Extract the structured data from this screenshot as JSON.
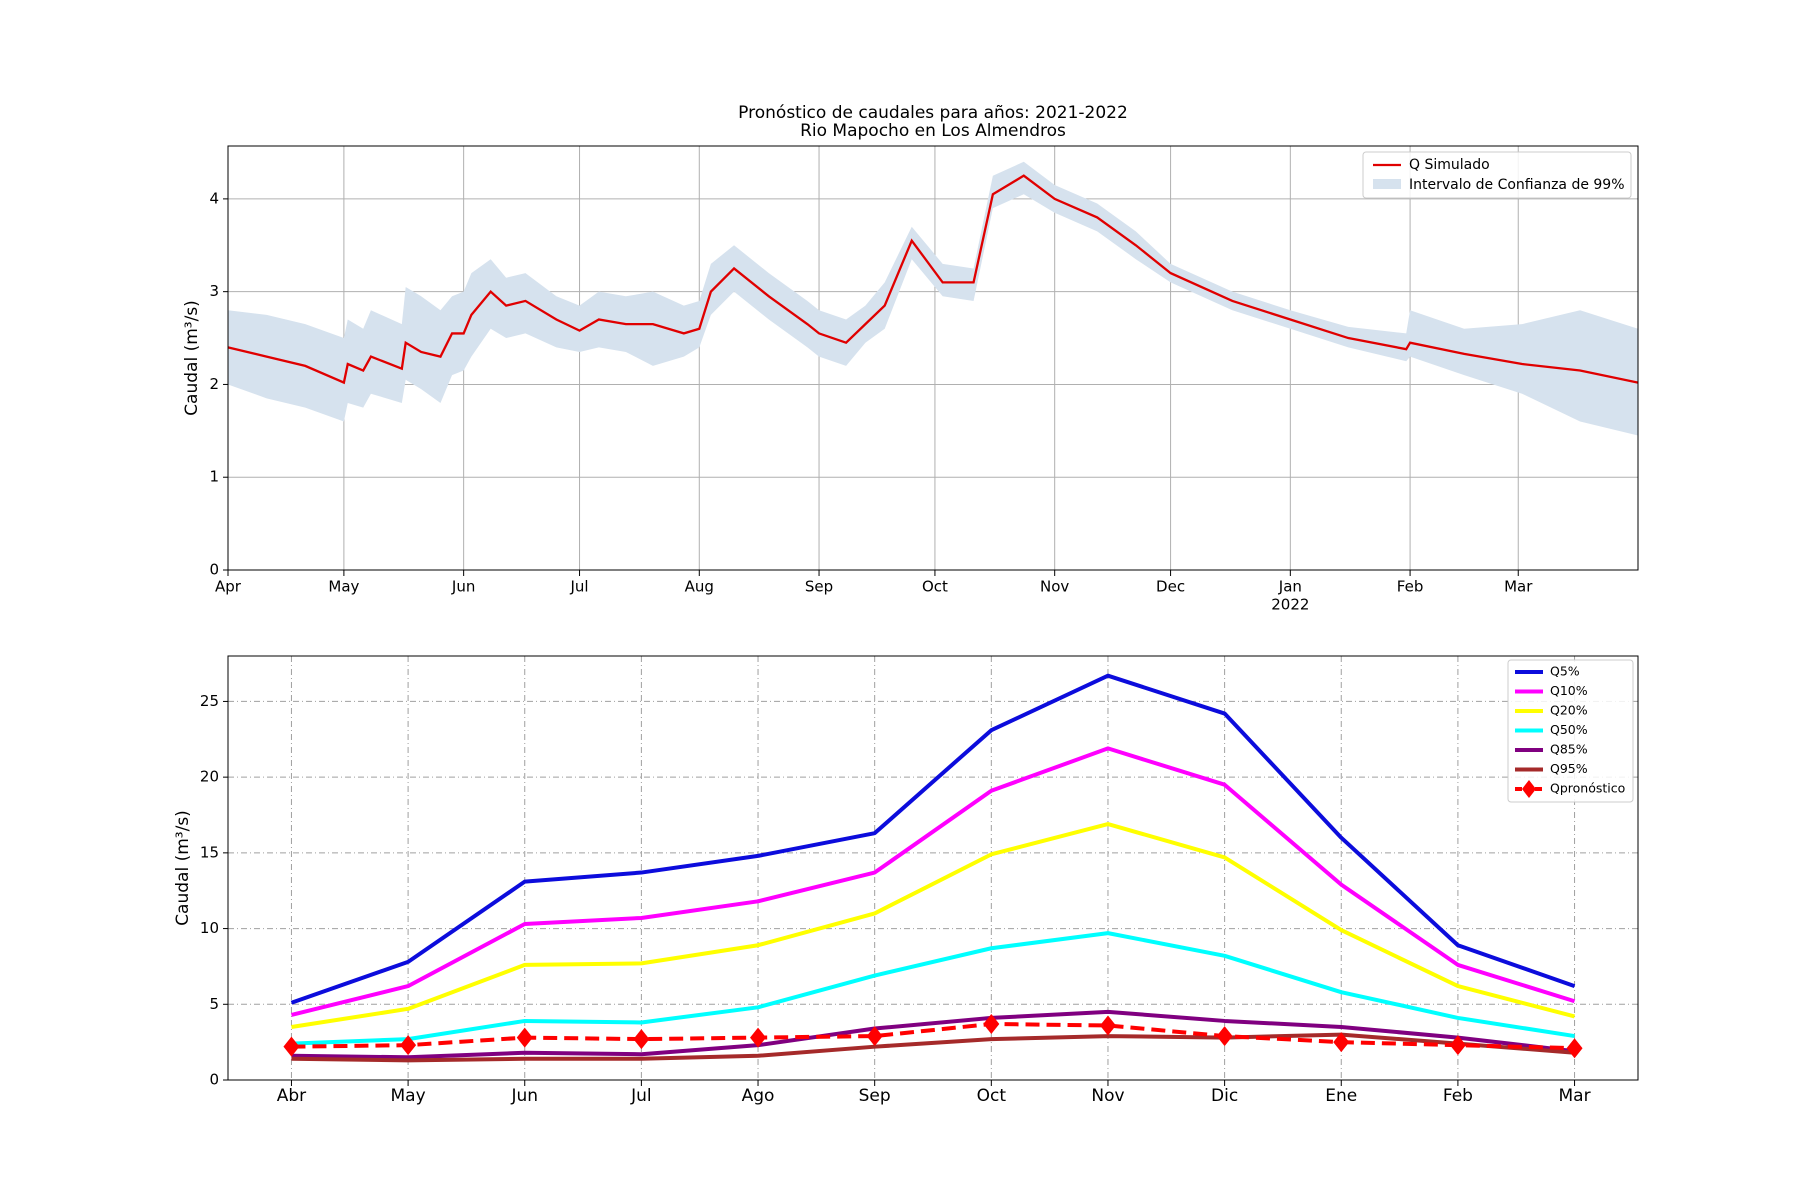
{
  "chart_data": [
    {
      "type": "line",
      "title": "Pronóstico de caudales para años: 2021-2022",
      "subtitle": "Rio Mapocho en Los Almendros",
      "y_label": "Caudal (m³/s)",
      "x": [
        0,
        10,
        20,
        30,
        31,
        35,
        37,
        45,
        46,
        50,
        55,
        58,
        61,
        63,
        68,
        72,
        77,
        85,
        91,
        96,
        103,
        110,
        118,
        122,
        125,
        131,
        140,
        150,
        153,
        160,
        165,
        170,
        177,
        185,
        193,
        198,
        206,
        214,
        225,
        235,
        244,
        260,
        275,
        290,
        305,
        306,
        320,
        335,
        350,
        365
      ],
      "series": [
        {
          "name": "Q Simulado",
          "color": "#e00000",
          "values": [
            2.4,
            2.3,
            2.2,
            2.02,
            2.22,
            2.15,
            2.3,
            2.17,
            2.45,
            2.35,
            2.3,
            2.55,
            2.55,
            2.75,
            3.0,
            2.85,
            2.9,
            2.7,
            2.58,
            2.7,
            2.65,
            2.65,
            2.55,
            2.6,
            3.0,
            3.25,
            2.95,
            2.65,
            2.55,
            2.45,
            2.65,
            2.85,
            3.55,
            3.1,
            3.1,
            4.05,
            4.25,
            4.0,
            3.8,
            3.5,
            3.2,
            2.9,
            2.7,
            2.5,
            2.38,
            2.45,
            2.33,
            2.22,
            2.15,
            2.02
          ]
        }
      ],
      "bands": [
        {
          "name": "Intervalo de Confianza de 99%",
          "color": "#d6e2ee",
          "lower": [
            2.0,
            1.85,
            1.75,
            1.6,
            1.8,
            1.75,
            1.9,
            1.8,
            2.05,
            1.95,
            1.8,
            2.1,
            2.15,
            2.3,
            2.6,
            2.5,
            2.55,
            2.4,
            2.35,
            2.4,
            2.35,
            2.2,
            2.3,
            2.4,
            2.75,
            3.0,
            2.7,
            2.4,
            2.3,
            2.2,
            2.45,
            2.6,
            3.35,
            2.95,
            2.9,
            3.9,
            4.05,
            3.85,
            3.65,
            3.35,
            3.1,
            2.8,
            2.6,
            2.4,
            2.25,
            2.3,
            2.1,
            1.9,
            1.6,
            1.45
          ],
          "upper": [
            2.8,
            2.75,
            2.65,
            2.5,
            2.7,
            2.6,
            2.8,
            2.65,
            3.05,
            2.95,
            2.8,
            2.95,
            3.0,
            3.2,
            3.35,
            3.15,
            3.2,
            2.95,
            2.85,
            3.0,
            2.95,
            3.0,
            2.85,
            2.9,
            3.3,
            3.5,
            3.2,
            2.9,
            2.8,
            2.7,
            2.85,
            3.1,
            3.7,
            3.3,
            3.25,
            4.25,
            4.4,
            4.15,
            3.95,
            3.65,
            3.3,
            3.0,
            2.8,
            2.62,
            2.55,
            2.8,
            2.6,
            2.65,
            2.8,
            2.6
          ]
        }
      ],
      "xlim": [
        0,
        365
      ],
      "xticks": [
        {
          "value": 0,
          "label": "Apr"
        },
        {
          "value": 30,
          "label": "May"
        },
        {
          "value": 61,
          "label": "Jun"
        },
        {
          "value": 91,
          "label": "Jul"
        },
        {
          "value": 122,
          "label": "Aug"
        },
        {
          "value": 153,
          "label": "Sep"
        },
        {
          "value": 183,
          "label": "Oct"
        },
        {
          "value": 214,
          "label": "Nov"
        },
        {
          "value": 244,
          "label": "Dec"
        },
        {
          "value": 275,
          "label": "Jan"
        },
        {
          "value": 306,
          "label": "Feb"
        },
        {
          "value": 334,
          "label": "Mar"
        }
      ],
      "annotations": [
        {
          "text": "2022",
          "x": 275
        }
      ],
      "ylim": [
        0,
        4.57
      ],
      "yticks": [
        0,
        1,
        2,
        3,
        4
      ],
      "grid": true,
      "legend": "upper right"
    },
    {
      "type": "line",
      "y_label": "Caudal (m³/s)",
      "categories": [
        "Abr",
        "May",
        "Jun",
        "Jul",
        "Ago",
        "Sep",
        "Oct",
        "Nov",
        "Dic",
        "Ene",
        "Feb",
        "Mar"
      ],
      "series": [
        {
          "name": "Q5%",
          "color": "#0c0cdc",
          "values": [
            5.1,
            7.8,
            13.1,
            13.7,
            14.8,
            16.3,
            23.1,
            26.7,
            24.2,
            16.0,
            8.9,
            6.2
          ]
        },
        {
          "name": "Q10%",
          "color": "#ff00ff",
          "values": [
            4.3,
            6.2,
            10.3,
            10.7,
            11.8,
            13.7,
            19.1,
            21.9,
            19.5,
            12.9,
            7.6,
            5.2
          ]
        },
        {
          "name": "Q20%",
          "color": "#ffff00",
          "values": [
            3.5,
            4.7,
            7.6,
            7.7,
            8.9,
            11.0,
            14.9,
            16.9,
            14.7,
            9.9,
            6.2,
            4.2
          ]
        },
        {
          "name": "Q50%",
          "color": "#00ffff",
          "values": [
            2.4,
            2.7,
            3.9,
            3.8,
            4.8,
            6.9,
            8.7,
            9.7,
            8.2,
            5.8,
            4.1,
            2.9
          ]
        },
        {
          "name": "Q85%",
          "color": "#800080",
          "values": [
            1.6,
            1.5,
            1.8,
            1.7,
            2.3,
            3.4,
            4.1,
            4.5,
            3.9,
            3.5,
            2.8,
            1.9
          ]
        },
        {
          "name": "Q95%",
          "color": "#a52a2a",
          "values": [
            1.4,
            1.3,
            1.4,
            1.4,
            1.6,
            2.2,
            2.7,
            2.9,
            2.8,
            3.0,
            2.4,
            1.8
          ]
        },
        {
          "name": "Qpronóstico",
          "color": "#ff0000",
          "dashed": true,
          "marker": "diamond",
          "values": [
            2.2,
            2.3,
            2.8,
            2.7,
            2.8,
            2.9,
            3.7,
            3.6,
            2.9,
            2.5,
            2.3,
            2.1
          ]
        }
      ],
      "ylim": [
        0,
        28
      ],
      "yticks": [
        0,
        5,
        10,
        15,
        20,
        25
      ],
      "grid": true,
      "legend": "upper right"
    }
  ]
}
